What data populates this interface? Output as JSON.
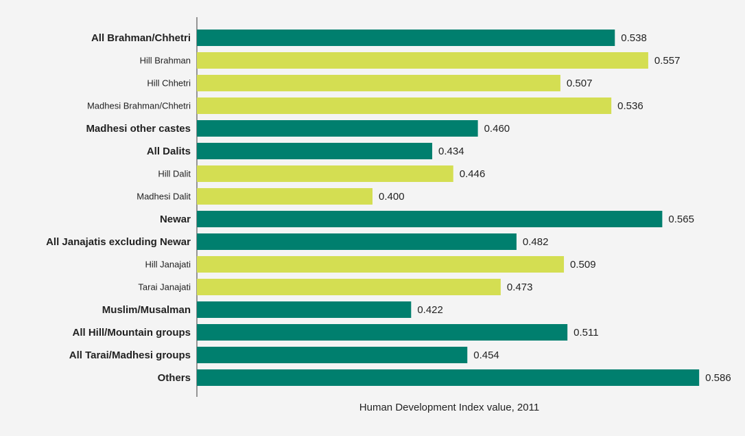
{
  "chart_data": {
    "type": "bar",
    "orientation": "horizontal",
    "x_label": "Human Development Index value, 2011",
    "categories": [
      "All Brahman/Chhetri",
      "Hill Brahman",
      "Hill Chhetri",
      "Madhesi Brahman/Chhetri",
      "Madhesi other castes",
      "All Dalits",
      "Hill Dalit",
      "Madhesi Dalit",
      "Newar",
      "All Janajatis excluding Newar",
      "Hill Janajati",
      "Tarai Janajati",
      "Muslim/Musalman",
      "All Hill/Mountain groups",
      "All Tarai/Madhesi groups",
      "Others"
    ],
    "values": [
      0.538,
      0.557,
      0.507,
      0.536,
      0.46,
      0.434,
      0.446,
      0.4,
      0.565,
      0.482,
      0.509,
      0.473,
      0.422,
      0.511,
      0.454,
      0.586
    ],
    "value_labels": [
      "0.538",
      "0.557",
      "0.507",
      "0.536",
      "0.460",
      "0.434",
      "0.446",
      "0.400",
      "0.565",
      "0.482",
      "0.509",
      "0.473",
      "0.422",
      "0.511",
      "0.454",
      "0.586"
    ],
    "colors": [
      "#007f6e",
      "#d4de52",
      "#d4de52",
      "#d4de52",
      "#007f6e",
      "#007f6e",
      "#d4de52",
      "#d4de52",
      "#007f6e",
      "#007f6e",
      "#d4de52",
      "#d4de52",
      "#007f6e",
      "#007f6e",
      "#007f6e",
      "#007f6e"
    ],
    "bold": [
      true,
      false,
      false,
      false,
      true,
      true,
      false,
      false,
      true,
      true,
      false,
      false,
      true,
      true,
      true,
      true
    ],
    "xlim": [
      0.3,
      0.6
    ]
  }
}
